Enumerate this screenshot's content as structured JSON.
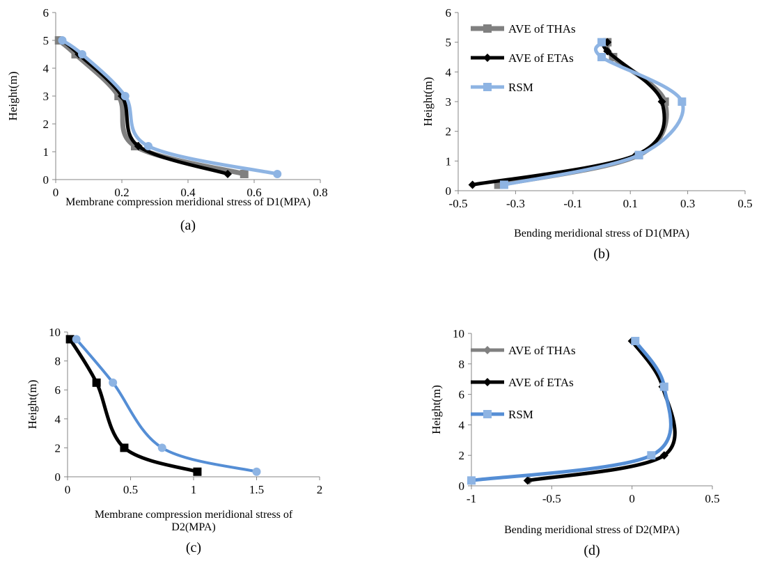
{
  "chart_data": [
    {
      "id": "a",
      "type": "line",
      "panel_label": "(a)",
      "xlabel": "Membrane compression meridional stress of  D1(MPA)",
      "ylabel": "Height(m)",
      "xlim": [
        0,
        0.8
      ],
      "ylim": [
        0,
        6
      ],
      "xticks": [
        "0",
        "0.2",
        "0.4",
        "0.6",
        "0.8"
      ],
      "yticks": [
        "0",
        "1",
        "2",
        "3",
        "4",
        "5",
        "6"
      ],
      "legend": "none",
      "series": [
        {
          "color": "#808080",
          "width": 7,
          "marker": "square",
          "points": [
            [
              0.01,
              5.0
            ],
            [
              0.06,
              4.5
            ],
            [
              0.19,
              3.0
            ],
            [
              0.24,
              1.2
            ],
            [
              0.57,
              0.2
            ]
          ]
        },
        {
          "color": "#000000",
          "width": 5,
          "marker": "diamond",
          "points": [
            [
              0.02,
              5.0
            ],
            [
              0.07,
              4.5
            ],
            [
              0.2,
              3.0
            ],
            [
              0.25,
              1.2
            ],
            [
              0.52,
              0.2
            ]
          ]
        },
        {
          "color": "#8EB4E3",
          "width": 5,
          "marker": "circle",
          "points": [
            [
              0.02,
              5.0
            ],
            [
              0.08,
              4.5
            ],
            [
              0.21,
              3.0
            ],
            [
              0.28,
              1.2
            ],
            [
              0.67,
              0.2
            ]
          ]
        }
      ]
    },
    {
      "id": "b",
      "type": "line",
      "panel_label": "(b)",
      "xlabel": "Bending meridional stress of D1(MPA)",
      "ylabel": "Height(m)",
      "xlim": [
        -0.5,
        0.5
      ],
      "ylim": [
        0,
        6
      ],
      "xticks": [
        "-0.5",
        "-0.3",
        "-0.1",
        "0.1",
        "0.3",
        "0.5"
      ],
      "yticks": [
        "0",
        "1",
        "2",
        "3",
        "4",
        "5",
        "6"
      ],
      "legend": "top-left",
      "series": [
        {
          "name": "AVE of THAs",
          "color": "#808080",
          "width": 7,
          "marker": "square",
          "points": [
            [
              0.02,
              5.0
            ],
            [
              0.04,
              4.5
            ],
            [
              0.22,
              3.0
            ],
            [
              0.13,
              1.2
            ],
            [
              -0.36,
              0.2
            ]
          ]
        },
        {
          "name": "AVE of ETAs",
          "color": "#000000",
          "width": 5,
          "marker": "diamond",
          "points": [
            [
              0.02,
              5.0
            ],
            [
              0.02,
              4.7
            ],
            [
              0.21,
              3.0
            ],
            [
              0.12,
              1.2
            ],
            [
              -0.45,
              0.2
            ]
          ]
        },
        {
          "name": "RSM",
          "color": "#8EB4E3",
          "width": 5,
          "marker": "square",
          "points": [
            [
              0.0,
              5.0
            ],
            [
              0.0,
              4.5
            ],
            [
              0.28,
              3.0
            ],
            [
              0.13,
              1.2
            ],
            [
              -0.34,
              0.2
            ]
          ]
        }
      ]
    },
    {
      "id": "c",
      "type": "line",
      "panel_label": "(c)",
      "xlabel": "Membrane compression meridional stress of",
      "xlabel2": "D2(MPA)",
      "ylabel": "Height(m)",
      "xlim": [
        0,
        2
      ],
      "ylim": [
        0,
        10
      ],
      "xticks": [
        "0",
        "0.5",
        "1",
        "1.5",
        "2"
      ],
      "yticks": [
        "0",
        "2",
        "4",
        "6",
        "8",
        "10"
      ],
      "legend": "none",
      "series": [
        {
          "color": "#000000",
          "width": 5,
          "marker": "square",
          "points": [
            [
              0.02,
              9.5
            ],
            [
              0.23,
              6.5
            ],
            [
              0.45,
              2.0
            ],
            [
              1.03,
              0.35
            ]
          ]
        },
        {
          "color": "#558ED5",
          "width": 4,
          "marker": "circle-light",
          "points": [
            [
              0.07,
              9.5
            ],
            [
              0.36,
              6.5
            ],
            [
              0.75,
              2.0
            ],
            [
              1.5,
              0.35
            ]
          ]
        }
      ]
    },
    {
      "id": "d",
      "type": "line",
      "panel_label": "(d)",
      "xlabel": "Bending meridional stress of D2(MPA)",
      "ylabel": "Height(m)",
      "xlim": [
        -1,
        0.5
      ],
      "ylim": [
        0,
        10
      ],
      "xticks": [
        "-1",
        "-0.5",
        "0",
        "0.5"
      ],
      "yticks": [
        "0",
        "2",
        "4",
        "6",
        "8",
        "10"
      ],
      "legend": "top-left",
      "series": [
        {
          "name": "AVE of THAs",
          "color": "#808080",
          "width": 5,
          "marker": "diamond",
          "points": [
            [
              0.0,
              9.5
            ],
            [
              0.19,
              6.5
            ],
            [
              0.2,
              2.0
            ],
            [
              -0.64,
              0.35
            ]
          ]
        },
        {
          "name": "AVE of ETAs",
          "color": "#000000",
          "width": 5,
          "marker": "diamond",
          "points": [
            [
              0.0,
              9.5
            ],
            [
              0.19,
              6.5
            ],
            [
              0.2,
              2.0
            ],
            [
              -0.65,
              0.35
            ]
          ]
        },
        {
          "name": "RSM",
          "color": "#558ED5",
          "width": 5,
          "marker": "square-light",
          "points": [
            [
              0.02,
              9.5
            ],
            [
              0.2,
              6.5
            ],
            [
              0.12,
              2.0
            ],
            [
              -1.0,
              0.35
            ]
          ]
        }
      ]
    }
  ]
}
